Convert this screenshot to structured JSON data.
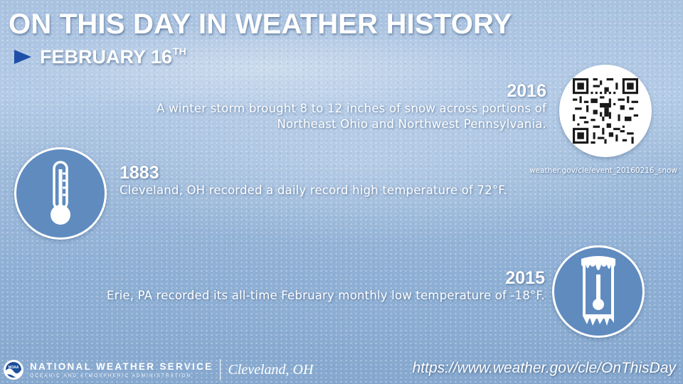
{
  "title": "ON THIS DAY IN WEATHER HISTORY",
  "date": {
    "month_day": "FEBRUARY 16",
    "suffix": "TH"
  },
  "events": [
    {
      "year": "2016",
      "description_lines": [
        "A winter storm brought 8 to 12 inches of snow across portions of",
        "Northeast Ohio and Northwest Pennsylvania."
      ]
    },
    {
      "year": "1883",
      "description_lines": [
        "Cleveland, OH recorded a daily record high temperature of 72°F."
      ]
    },
    {
      "year": "2015",
      "description_lines": [
        "Erie, PA recorded its all-time February monthly low temperature of -18°F."
      ]
    }
  ],
  "qr": {
    "icon": "qr-code-icon",
    "url_label": "weather.gov/cle/event_20160216_snow"
  },
  "icons": {
    "thermometer": "thermometer-icon",
    "frozen_thermometer": "frozen-thermometer-icon",
    "arrow": "arrow-right-icon"
  },
  "footer": {
    "agency": "NATIONAL WEATHER SERVICE",
    "agency_sub": "OCEANIC AND ATMOSPHERIC ADMINISTRATION",
    "office": "Cleveland, OH",
    "url": "https://www.weather.gov/cle/OnThisDay"
  },
  "colors": {
    "accent_arrow": "#1f4fa8",
    "circle_fill": "#5f8bbf",
    "text": "#ffffff"
  }
}
